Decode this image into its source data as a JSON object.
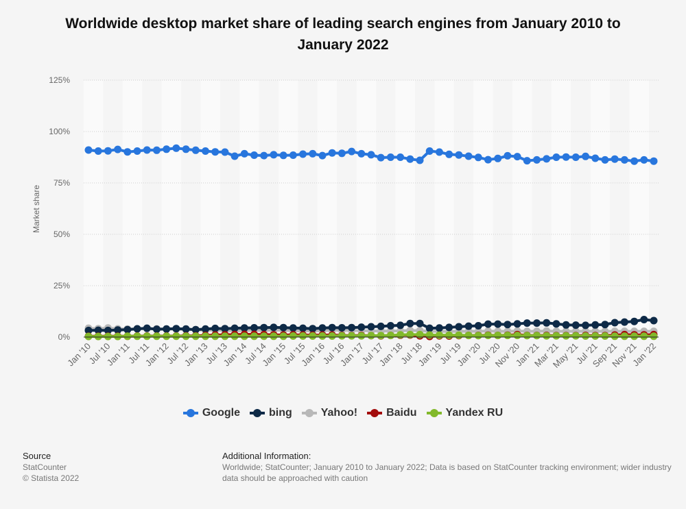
{
  "title": "Worldwide desktop market share of leading search engines from January 2010 to January 2022",
  "chart_data": {
    "type": "line",
    "title": "Worldwide desktop market share of leading search engines from January 2010 to January 2022",
    "xlabel": "",
    "ylabel": "Market share",
    "ylim": [
      0,
      125
    ],
    "yticks": [
      "0%",
      "25%",
      "50%",
      "75%",
      "100%",
      "125%"
    ],
    "ytick_values": [
      0,
      25,
      50,
      75,
      100,
      125
    ],
    "grid": true,
    "legend_position": "bottom",
    "x": [
      "Jan '10",
      "Apr '10",
      "Jul '10",
      "Oct '10",
      "Jan '11",
      "Apr '11",
      "Jul '11",
      "Oct '11",
      "Jan '12",
      "Apr '12",
      "Jul '12",
      "Oct '12",
      "Jan '13",
      "Apr '13",
      "Jul '13",
      "Oct '13",
      "Jan '14",
      "Apr '14",
      "Jul '14",
      "Oct '14",
      "Jan '15",
      "Apr '15",
      "Jul '15",
      "Oct '15",
      "Jan '16",
      "Apr '16",
      "Jul '16",
      "Oct '16",
      "Jan '17",
      "Apr '17",
      "Jul '17",
      "Oct '17",
      "Jan '18",
      "Apr '18",
      "Jul '18",
      "Oct '18",
      "Jan '19",
      "Apr '19",
      "Jul '19",
      "Oct '19",
      "Jan '20",
      "Apr '20",
      "Jul '20",
      "Sep '20",
      "Nov '20",
      "Dec '20",
      "Jan '21",
      "Feb '21",
      "Mar '21",
      "Apr '21",
      "May '21",
      "Jun '21",
      "Jul '21",
      "Aug '21",
      "Sep '21",
      "Oct '21",
      "Nov '21",
      "Dec '21",
      "Jan '22"
    ],
    "tick_labels": [
      {
        "index": 0,
        "label": "Jan '10"
      },
      {
        "index": 2,
        "label": "Jul '10"
      },
      {
        "index": 4,
        "label": "Jan '11"
      },
      {
        "index": 6,
        "label": "Jul '11"
      },
      {
        "index": 8,
        "label": "Jan '12"
      },
      {
        "index": 10,
        "label": "Jul '12"
      },
      {
        "index": 12,
        "label": "Jan '13"
      },
      {
        "index": 14,
        "label": "Jul '13"
      },
      {
        "index": 16,
        "label": "Jan '14"
      },
      {
        "index": 18,
        "label": "Jul '14"
      },
      {
        "index": 20,
        "label": "Jan '15"
      },
      {
        "index": 22,
        "label": "Jul '15"
      },
      {
        "index": 24,
        "label": "Jan '16"
      },
      {
        "index": 26,
        "label": "Jul '16"
      },
      {
        "index": 28,
        "label": "Jan '17"
      },
      {
        "index": 30,
        "label": "Jul '17"
      },
      {
        "index": 32,
        "label": "Jan '18"
      },
      {
        "index": 34,
        "label": "Jul '18"
      },
      {
        "index": 36,
        "label": "Jan '19"
      },
      {
        "index": 38,
        "label": "Jul '19"
      },
      {
        "index": 40,
        "label": "Jan '20"
      },
      {
        "index": 42,
        "label": "Jul '20"
      },
      {
        "index": 44,
        "label": "Nov '20"
      },
      {
        "index": 46,
        "label": "Jan '21"
      },
      {
        "index": 48,
        "label": "Mar '21"
      },
      {
        "index": 50,
        "label": "May '21"
      },
      {
        "index": 52,
        "label": "Jul '21"
      },
      {
        "index": 54,
        "label": "Sep '21"
      },
      {
        "index": 56,
        "label": "Nov '21"
      },
      {
        "index": 58,
        "label": "Jan '22"
      }
    ],
    "series": [
      {
        "name": "Google",
        "color": "#2876dd",
        "values": [
          91,
          90.5,
          90.6,
          91.3,
          90.1,
          90.5,
          91,
          90.9,
          91.4,
          91.9,
          91.4,
          90.9,
          90.5,
          90.1,
          90,
          88,
          89.2,
          88.5,
          88.3,
          88.7,
          88.4,
          88.5,
          89,
          89.2,
          88.3,
          89.6,
          89.4,
          90.3,
          89.2,
          88.7,
          87.3,
          87.5,
          87.5,
          86.6,
          86,
          90.5,
          90,
          88.9,
          88.6,
          88,
          87.4,
          86.3,
          86.9,
          88.2,
          87.8,
          85.8,
          86.2,
          86.7,
          87.5,
          87.6,
          87.5,
          87.9,
          87,
          86.2,
          86.6,
          86.2,
          85.6,
          86.2,
          85.6
        ]
      },
      {
        "name": "bing",
        "color": "#0e2a47",
        "values": [
          3.2,
          3.3,
          3.2,
          3.4,
          3.6,
          4,
          4.3,
          3.8,
          3.9,
          4.1,
          3.9,
          3.6,
          3.9,
          4.2,
          4.1,
          4.3,
          4.4,
          4.5,
          4.6,
          4.7,
          4.6,
          4.4,
          4.3,
          4.1,
          4.4,
          4.6,
          4.5,
          4.6,
          4.8,
          5,
          5.2,
          5.5,
          5.7,
          6.6,
          6.6,
          4.3,
          4.4,
          4.7,
          5,
          5.3,
          5.5,
          6.3,
          6.3,
          6.1,
          6.4,
          6.8,
          6.8,
          6.9,
          6.4,
          5.9,
          5.8,
          5.7,
          5.9,
          6.1,
          7,
          7.3,
          7.6,
          8.5,
          8
        ]
      },
      {
        "name": "Yahoo!",
        "color": "#b8b8b8",
        "values": [
          4.3,
          4.1,
          4.4,
          4,
          3.9,
          4,
          4.1,
          4,
          3.9,
          3.8,
          3.7,
          3.6,
          3.3,
          3.4,
          3.2,
          3.1,
          3.2,
          3.3,
          3.2,
          3.4,
          3.3,
          3.1,
          3,
          3,
          3.1,
          3.3,
          3.3,
          3.2,
          3.1,
          3,
          2.9,
          2.9,
          3,
          3.2,
          3.1,
          2.8,
          2.8,
          2.7,
          2.8,
          2.8,
          2.8,
          2.9,
          2.8,
          2.8,
          2.9,
          2.8,
          2.8,
          2.9,
          2.8,
          2.8,
          2.8,
          2.8,
          2.8,
          2.8,
          2.8,
          2.8,
          2.8,
          2.8,
          2.8
        ]
      },
      {
        "name": "Baidu",
        "color": "#a30d0d",
        "values": [
          0.4,
          0.4,
          0.4,
          0.4,
          0.4,
          0.5,
          0.5,
          0.5,
          0.5,
          0.5,
          0.6,
          0.6,
          0.8,
          1,
          1.1,
          1.2,
          1.3,
          1.3,
          1.2,
          1.1,
          1,
          1.1,
          1,
          0.9,
          1,
          1,
          0.8,
          0.7,
          0.8,
          0.7,
          0.6,
          0.8,
          0.9,
          1,
          0.6,
          0.3,
          0.6,
          0.5,
          0.7,
          0.8,
          0.8,
          0.9,
          0.8,
          0.9,
          1.2,
          0.8,
          0.8,
          0.8,
          0.7,
          0.7,
          0.7,
          0.8,
          0.7,
          0.7,
          1,
          1.2,
          1.1,
          1.1,
          1.2
        ]
      },
      {
        "name": "Yandex RU",
        "color": "#82b92b",
        "values": [
          0.3,
          0.3,
          0.3,
          0.3,
          0.4,
          0.4,
          0.4,
          0.4,
          0.4,
          0.4,
          0.4,
          0.4,
          0.4,
          0.4,
          0.4,
          0.4,
          0.4,
          0.4,
          0.4,
          0.4,
          0.4,
          0.5,
          0.5,
          0.5,
          0.5,
          0.5,
          0.6,
          0.6,
          0.6,
          0.7,
          0.7,
          0.8,
          1.1,
          1.2,
          1.2,
          1,
          0.9,
          0.9,
          0.9,
          0.8,
          0.7,
          0.8,
          0.8,
          0.8,
          0.8,
          0.7,
          0.7,
          0.6,
          0.6,
          0.6,
          0.6,
          0.5,
          0.5,
          0.5,
          0.4,
          0.4,
          0.4,
          0.4,
          0.4
        ]
      }
    ]
  },
  "legend": [
    {
      "label": "Google",
      "color": "#2876dd"
    },
    {
      "label": "bing",
      "color": "#0e2a47"
    },
    {
      "label": "Yahoo!",
      "color": "#b8b8b8"
    },
    {
      "label": "Baidu",
      "color": "#a30d0d"
    },
    {
      "label": "Yandex RU",
      "color": "#82b92b"
    }
  ],
  "footer": {
    "source_heading": "Source",
    "source_lines": [
      "StatCounter",
      "© Statista 2022"
    ],
    "info_heading": "Additional Information:",
    "info_lines": [
      "Worldwide; StatCounter; January 2010 to January 2022; Data is based on StatCounter tracking environment; wider industry",
      "data should be approached with caution"
    ]
  }
}
